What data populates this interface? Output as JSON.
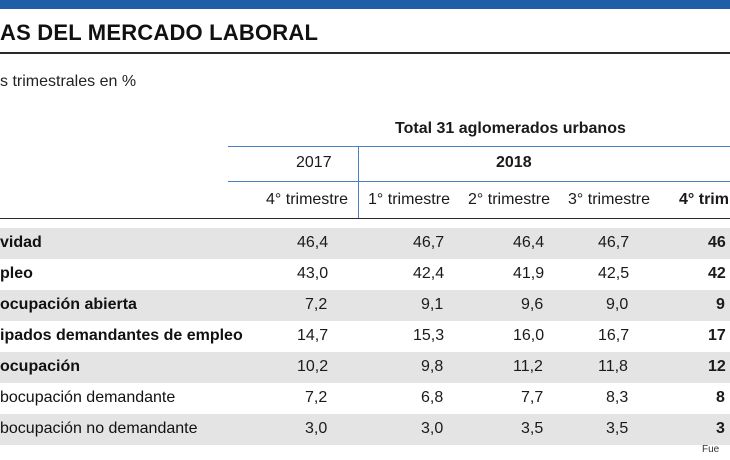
{
  "title": "AS DEL MERCADO LABORAL",
  "subtitle": "s trimestrales en %",
  "table": {
    "group_header": "Total 31 aglomerados urbanos",
    "years": [
      "2017",
      "2018"
    ],
    "quarters": [
      "4° trimestre",
      "1° trimestre",
      "2° trimestre",
      "3° trimestre",
      "4° trim"
    ],
    "rows": [
      {
        "label": "vidad",
        "values": [
          "46,4",
          "46,7",
          "46,4",
          "46,7",
          "46"
        ]
      },
      {
        "label": "pleo",
        "values": [
          "43,0",
          "42,4",
          "41,9",
          "42,5",
          "42"
        ]
      },
      {
        "label": "ocupación abierta",
        "values": [
          "7,2",
          "9,1",
          "9,6",
          "9,0",
          "9"
        ]
      },
      {
        "label": "ipados demandantes de empleo",
        "values": [
          "14,7",
          "15,3",
          "16,0",
          "16,7",
          "17"
        ]
      },
      {
        "label": "ocupación",
        "values": [
          "10,2",
          "9,8",
          "11,2",
          "11,8",
          "12"
        ]
      },
      {
        "label": "bocupación demandante",
        "values": [
          "7,2",
          "6,8",
          "7,7",
          "8,3",
          "8"
        ]
      },
      {
        "label": "bocupación no demandante",
        "values": [
          "3,0",
          "3,0",
          "3,5",
          "3,5",
          "3"
        ]
      }
    ]
  },
  "source": "Fue",
  "colors": {
    "accent": "#1f5fa6",
    "rule": "#4a7fc0",
    "shade": "#e4e4e4"
  }
}
